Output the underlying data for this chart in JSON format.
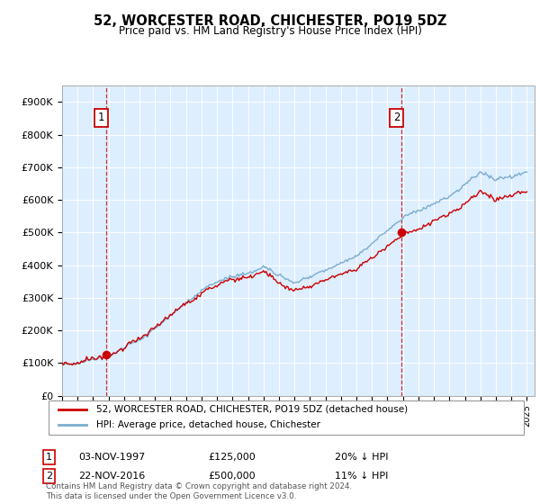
{
  "title": "52, WORCESTER ROAD, CHICHESTER, PO19 5DZ",
  "subtitle": "Price paid vs. HM Land Registry's House Price Index (HPI)",
  "ylabel_ticks": [
    "£0",
    "£100K",
    "£200K",
    "£300K",
    "£400K",
    "£500K",
    "£600K",
    "£700K",
    "£800K",
    "£900K"
  ],
  "ytick_values": [
    0,
    100000,
    200000,
    300000,
    400000,
    500000,
    600000,
    700000,
    800000,
    900000
  ],
  "ylim": [
    0,
    950000
  ],
  "sale1_t": 1997.84,
  "sale2_t": 2016.9,
  "sale1_date": "03-NOV-1997",
  "sale1_price": 125000,
  "sale2_date": "22-NOV-2016",
  "sale2_price": 500000,
  "sale1_hpi_pct": "20% ↓ HPI",
  "sale2_hpi_pct": "11% ↓ HPI",
  "legend_red": "52, WORCESTER ROAD, CHICHESTER, PO19 5DZ (detached house)",
  "legend_blue": "HPI: Average price, detached house, Chichester",
  "footer": "Contains HM Land Registry data © Crown copyright and database right 2024.\nThis data is licensed under the Open Government Licence v3.0.",
  "red_color": "#cc0000",
  "blue_color": "#7aadcc",
  "plot_bg_color": "#ddeeff",
  "background_color": "#ffffff",
  "grid_color": "#ffffff"
}
